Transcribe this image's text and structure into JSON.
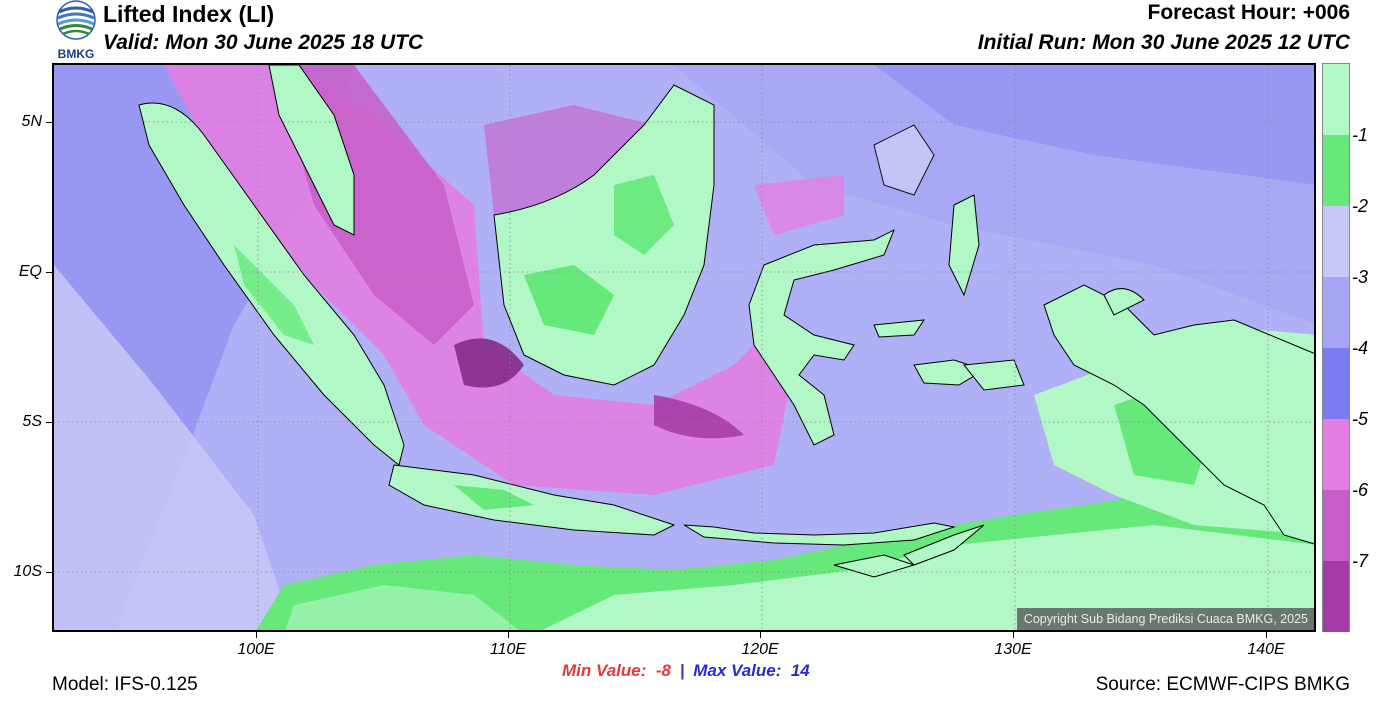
{
  "header": {
    "title": "Lifted Index (LI)",
    "valid": "Valid: Mon 30 June 2025 18 UTC",
    "forecast_hour": "Forecast Hour: +006",
    "initial_run": "Initial Run: Mon 30 June 2025 12 UTC",
    "logo_text": "BMKG"
  },
  "map": {
    "copyright": "Copyright Sub Bidang Prediksi Cuaca BMKG, 2025",
    "lat_labels": [
      "5N",
      "EQ",
      "5S",
      "10S"
    ],
    "lon_labels": [
      "100E",
      "110E",
      "120E",
      "130E",
      "140E"
    ]
  },
  "colorbar": {
    "labels": [
      "-1",
      "-2",
      "-3",
      "-4",
      "-5",
      "-6",
      "-7"
    ],
    "colors": [
      "#b2f7c6",
      "#66e87a",
      "#c8c8f8",
      "#a6a6f4",
      "#7c7cf2",
      "#e27ee2",
      "#c85ec8",
      "#a43aa4",
      "#862a86"
    ]
  },
  "stats": {
    "min_label": "Min Value:",
    "min_value": "-8",
    "separator": "|",
    "max_label": "Max Value:",
    "max_value": "14"
  },
  "footer": {
    "model": "Model: IFS-0.125",
    "source": "Source: ECMWF-CIPS BMKG"
  }
}
